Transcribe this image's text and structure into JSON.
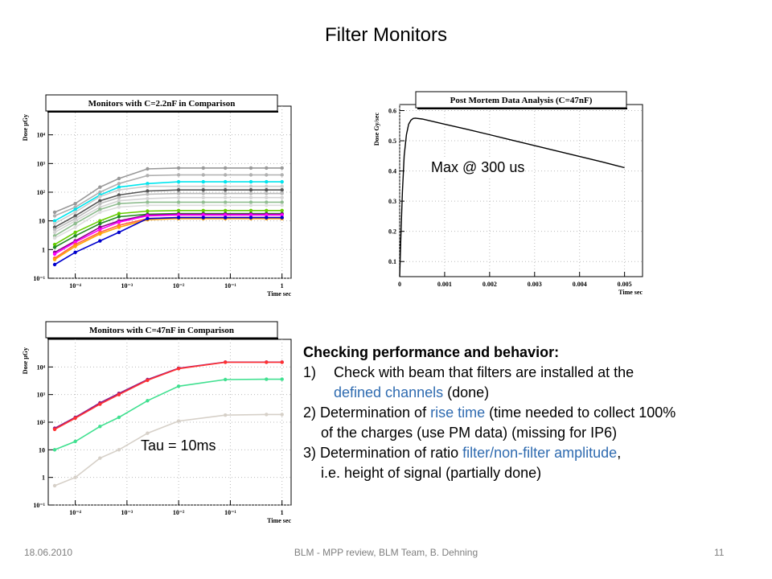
{
  "slide": {
    "title": "Filter Monitors",
    "footer": {
      "date": "18.06.2010",
      "center": "BLM - MPP review, BLM Team, B. Dehning",
      "page": "11"
    }
  },
  "annotations": {
    "max": "Max @ 300 us",
    "tau": "Tau = 10ms"
  },
  "bullets": {
    "heading": "Checking performance and behavior:",
    "b1_num": "1)",
    "b1_a": "Check with beam that filters are installed at the",
    "b1_b_hl": "defined channels",
    "b1_b_rest": " (done)",
    "b2_pre": "2) Determination of ",
    "b2_hl": "rise time",
    "b2_post": " (time needed to collect 100%",
    "b2_cont": "of the charges (use PM data) (missing for IP6)",
    "b3_pre": "3) Determination of ratio ",
    "b3_hl": "filter/non-filter amplitude",
    "b3_post": ",",
    "b3_cont": "i.e. height of signal (partially done)"
  },
  "chart_data": [
    {
      "type": "line",
      "title": "Monitors with C=2.2nF in Comparison",
      "ylabel": "Dose μGy",
      "xlabel": "Time sec",
      "xscale": "log",
      "yscale": "log",
      "xlim": [
        3e-05,
        1.5
      ],
      "ylim": [
        0.1,
        100000
      ],
      "x_ticks": [
        "10⁻⁴",
        "10⁻³",
        "10⁻²",
        "10⁻¹",
        "1"
      ],
      "y_ticks": [
        "10⁻¹",
        "1",
        "10",
        "10²",
        "10³",
        "10⁴"
      ],
      "x": [
        4e-05,
        0.0001,
        0.0003,
        0.0007,
        0.0025,
        0.01,
        0.03,
        0.08,
        0.25,
        0.5,
        1
      ],
      "series": [
        {
          "color": "#999999",
          "values": [
            20,
            40,
            150,
            300,
            650,
            700,
            700,
            700,
            700,
            700,
            700
          ]
        },
        {
          "color": "#b0b0b0",
          "values": [
            15,
            30,
            100,
            200,
            380,
            400,
            400,
            400,
            400,
            400,
            400
          ]
        },
        {
          "color": "#00e5ee",
          "values": [
            10,
            25,
            80,
            150,
            200,
            230,
            230,
            230,
            230,
            230,
            230
          ]
        },
        {
          "color": "#cccccc",
          "values": [
            8,
            20,
            70,
            120,
            160,
            160,
            160,
            160,
            160,
            160,
            160
          ]
        },
        {
          "color": "#555555",
          "values": [
            6,
            15,
            50,
            80,
            110,
            120,
            120,
            120,
            120,
            120,
            120
          ]
        },
        {
          "color": "#bbbbbb",
          "values": [
            5,
            12,
            40,
            65,
            85,
            90,
            90,
            90,
            90,
            90,
            90
          ]
        },
        {
          "color": "#d3d3d3",
          "values": [
            4,
            10,
            30,
            50,
            60,
            65,
            65,
            65,
            65,
            65,
            65
          ]
        },
        {
          "color": "#8fbc8f",
          "values": [
            3,
            8,
            25,
            40,
            45,
            45,
            45,
            45,
            45,
            45,
            45
          ]
        },
        {
          "color": "#dddddd",
          "values": [
            2.5,
            6,
            20,
            30,
            35,
            35,
            35,
            35,
            35,
            35,
            35
          ]
        },
        {
          "color": "#66cd00",
          "values": [
            1.5,
            4,
            10,
            18,
            22,
            23,
            23,
            23,
            23,
            23,
            23
          ]
        },
        {
          "color": "#228b22",
          "values": [
            1.2,
            3,
            8,
            14,
            17,
            18,
            18,
            18,
            18,
            18,
            18
          ]
        },
        {
          "color": "#8b008b",
          "values": [
            0.8,
            2,
            6,
            10,
            16,
            17,
            17,
            17,
            17,
            17,
            17
          ]
        },
        {
          "color": "#ff00ff",
          "values": [
            0.7,
            1.8,
            5,
            9,
            15,
            16,
            16,
            16,
            16,
            16,
            16
          ]
        },
        {
          "color": "#ff6347",
          "values": [
            0.5,
            1.5,
            4,
            7,
            12,
            13,
            13,
            13,
            13,
            13,
            13
          ]
        },
        {
          "color": "#ffa500",
          "values": [
            0.45,
            1.3,
            3.5,
            6,
            11,
            12,
            12,
            12,
            12,
            12,
            12
          ]
        },
        {
          "color": "#0000cd",
          "values": [
            0.3,
            0.8,
            2,
            4,
            12,
            13,
            13,
            13,
            13,
            13,
            13
          ]
        }
      ]
    },
    {
      "type": "line",
      "title": "Post Mortem Data Analysis (C=47nF)",
      "ylabel": "Dose Gy/sec",
      "xlabel": "Time sec",
      "xlim": [
        0,
        0.0054
      ],
      "ylim": [
        0.05,
        0.62
      ],
      "x_ticks": [
        "0",
        "0.001",
        "0.002",
        "0.003",
        "0.004",
        "0.005"
      ],
      "y_ticks": [
        "0.1",
        "0.2",
        "0.3",
        "0.4",
        "0.5",
        "0.6"
      ],
      "x": [
        0,
        3e-05,
        6e-05,
        0.0001,
        0.00015,
        0.0002,
        0.00025,
        0.0003,
        0.00035,
        0.0004,
        0.0005,
        0.001,
        0.0015,
        0.002,
        0.0025,
        0.003,
        0.0035,
        0.004,
        0.0045,
        0.005
      ],
      "series": [
        {
          "color": "#000000",
          "values": [
            0.05,
            0.2,
            0.33,
            0.45,
            0.52,
            0.555,
            0.568,
            0.574,
            0.575,
            0.574,
            0.572,
            0.555,
            0.538,
            0.52,
            0.502,
            0.484,
            0.466,
            0.448,
            0.43,
            0.411
          ]
        }
      ]
    },
    {
      "type": "line",
      "title": "Monitors with C=47nF in Comparison",
      "ylabel": "Dose μGy",
      "xlabel": "Time sec",
      "xscale": "log",
      "yscale": "log",
      "xlim": [
        3e-05,
        1.5
      ],
      "ylim": [
        0.1,
        100000
      ],
      "x_ticks": [
        "10⁻⁴",
        "10⁻³",
        "10⁻²",
        "10⁻¹",
        "1"
      ],
      "y_ticks": [
        "10⁻¹",
        "1",
        "10",
        "10²",
        "10³",
        "10⁴"
      ],
      "x": [
        4e-05,
        0.0001,
        0.0003,
        0.0007,
        0.0025,
        0.01,
        0.08,
        0.5,
        1
      ],
      "series": [
        {
          "color": "#8b1a8b",
          "values": [
            60,
            150,
            500,
            1100,
            3500,
            9000,
            15000,
            15000,
            15000
          ]
        },
        {
          "color": "#ff3030",
          "values": [
            55,
            140,
            450,
            1000,
            3300,
            8700,
            14800,
            14800,
            14800
          ]
        },
        {
          "color": "#40e090",
          "values": [
            10,
            20,
            70,
            150,
            600,
            2000,
            3500,
            3600,
            3600
          ]
        },
        {
          "color": "#d6d0c8",
          "values": [
            0.5,
            1,
            5,
            10,
            40,
            110,
            180,
            190,
            190
          ]
        }
      ]
    }
  ]
}
